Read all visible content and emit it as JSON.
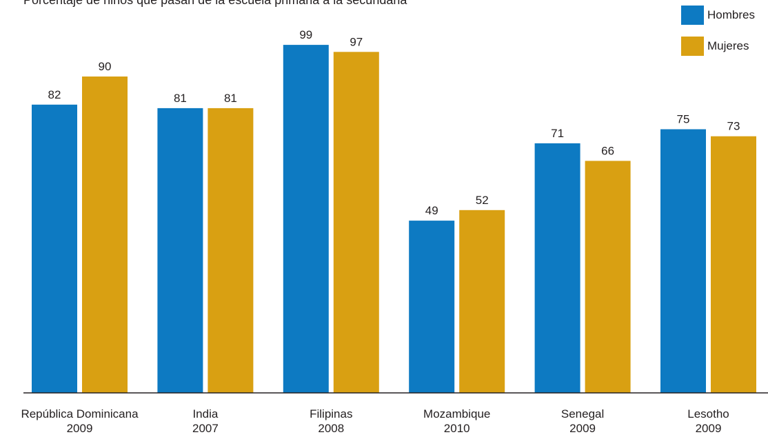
{
  "chart_data": {
    "type": "bar",
    "title": "Porcentaje de niños que pasan de la escuela primaria a la secundaria",
    "categories": [
      [
        "República Dominicana",
        "2009"
      ],
      [
        "India",
        "2007"
      ],
      [
        "Filipinas",
        "2008"
      ],
      [
        "Mozambique",
        "2010"
      ],
      [
        "Senegal",
        "2009"
      ],
      [
        "Lesotho",
        "2009"
      ]
    ],
    "series": [
      {
        "name": "Hombres",
        "color": "#0d7ac2",
        "values": [
          82,
          81,
          99,
          49,
          71,
          75
        ]
      },
      {
        "name": "Mujeres",
        "color": "#d9a012",
        "values": [
          90,
          81,
          97,
          52,
          66,
          73
        ]
      }
    ],
    "ylim": [
      0,
      100
    ],
    "grid": false,
    "legend": "top-right",
    "data_labels": true
  }
}
